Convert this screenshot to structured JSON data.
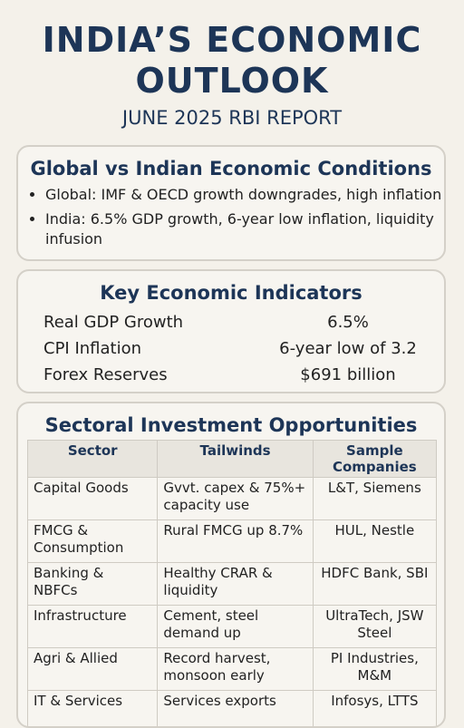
{
  "header": {
    "title": "INDIA’S ECONOMIC OUTLOOK",
    "subtitle": "JUNE 2025 RBI REPORT"
  },
  "conditions": {
    "title": "Global vs Indian Economic Conditions",
    "bullets": [
      "Global: IMF & OECD growth downgrades, high inflation",
      "India: 6.5% GDP growth, 6-year low inflation, liquidity infusion"
    ]
  },
  "indicators": {
    "title": "Key Economic Indicators",
    "rows": [
      [
        "Real GDP Growth",
        "6.5%"
      ],
      [
        "CPI Inflation",
        "6-year low of 3.2"
      ],
      [
        "Forex Reserves",
        "$691 billion"
      ]
    ]
  },
  "sectors": {
    "title": "Sectoral Investment Opportunities",
    "columns": [
      "Sector",
      "Tailwinds",
      "Sample Companies"
    ],
    "rows": [
      [
        "Capital Goods",
        "Gvvt. capex & 75%+ capacity use",
        "L&T, Siemens"
      ],
      [
        "FMCG & Consumption",
        "Rural FMCG up 8.7%",
        "HUL, Nestle"
      ],
      [
        "Banking & NBFCs",
        "Healthy CRAR & liquidity",
        "HDFC Bank, SBI"
      ],
      [
        "Infrastructure",
        "Cement, steel demand up",
        "UltraTech, JSW Steel"
      ],
      [
        "Agri & Allied",
        "Record harvest, monsoon early",
        "PI Industries, M&M"
      ],
      [
        "IT & Services",
        "Services exports",
        "Infosys, LTTS"
      ]
    ]
  }
}
